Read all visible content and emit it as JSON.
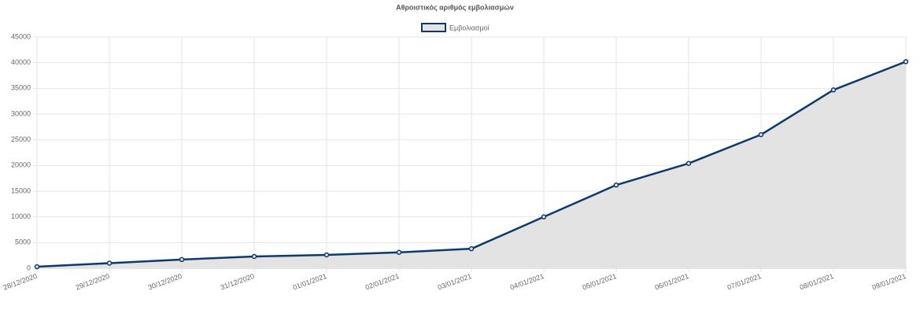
{
  "chart_data": {
    "type": "line",
    "title": "Αθροιστικός αριθμός εμβολιασμών",
    "categories": [
      "28/12/2020",
      "29/12/2020",
      "30/12/2020",
      "31/12/2020",
      "01/01/2021",
      "02/01/2021",
      "03/01/2021",
      "04/01/2021",
      "05/01/2021",
      "06/01/2021",
      "07/01/2021",
      "08/01/2021",
      "09/01/2021"
    ],
    "series": [
      {
        "name": "Εμβολιασμοί",
        "color": "#0d3a6e",
        "values": [
          300,
          1000,
          1700,
          2300,
          2600,
          3100,
          3800,
          10000,
          16200,
          20400,
          26000,
          34700,
          40200
        ]
      }
    ],
    "area_color": "#e3e3e3",
    "ylim": [
      0,
      45000
    ],
    "yticks": [
      0,
      5000,
      10000,
      15000,
      20000,
      25000,
      30000,
      35000,
      40000,
      45000
    ],
    "grid": true
  }
}
